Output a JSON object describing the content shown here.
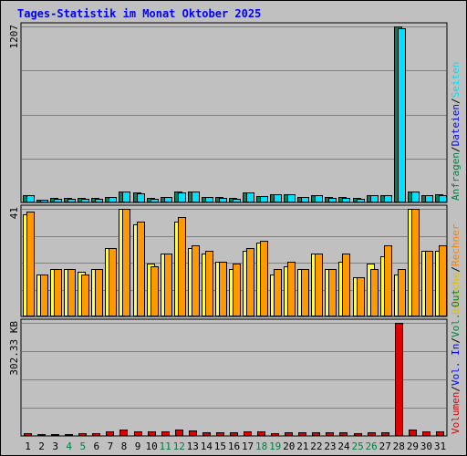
{
  "title": "Tages-Statistik im Monat Oktober 2025",
  "chart_data": [
    {
      "type": "bar",
      "panel": "top",
      "ymax_label": "1207",
      "ylim": [
        0,
        1207
      ],
      "categories": [
        "1",
        "2",
        "3",
        "4",
        "5",
        "6",
        "7",
        "8",
        "9",
        "10",
        "11",
        "12",
        "13",
        "14",
        "15",
        "16",
        "17",
        "18",
        "19",
        "20",
        "21",
        "22",
        "23",
        "24",
        "25",
        "26",
        "27",
        "28",
        "29",
        "30",
        "31"
      ],
      "weekend_days": [
        "4",
        "5",
        "11",
        "12",
        "18",
        "19",
        "25",
        "26"
      ],
      "right_labels": [
        {
          "text": "Anfragen",
          "color": "#008040"
        },
        {
          "text": "/",
          "color": "#000000"
        },
        {
          "text": "Dateien",
          "color": "#0000ff"
        },
        {
          "text": "/",
          "color": "#000000"
        },
        {
          "text": "Seiten",
          "color": "#00e0ff"
        }
      ],
      "series": [
        {
          "name": "Anfragen",
          "color": "#00805c",
          "values": [
            50,
            20,
            30,
            30,
            30,
            30,
            40,
            78,
            70,
            30,
            40,
            76,
            78,
            40,
            35,
            30,
            70,
            45,
            55,
            55,
            40,
            50,
            35,
            35,
            30,
            50,
            50,
            1207,
            75,
            50,
            55
          ]
        },
        {
          "name": "Dateien",
          "color": "#00e0ff",
          "values": [
            48,
            18,
            28,
            28,
            28,
            28,
            38,
            75,
            65,
            28,
            38,
            70,
            72,
            38,
            32,
            28,
            70,
            42,
            55,
            55,
            38,
            48,
            32,
            32,
            28,
            48,
            48,
            1193,
            72,
            48,
            50
          ]
        }
      ]
    },
    {
      "type": "bar",
      "panel": "middle",
      "ymax_label": "41",
      "ylim": [
        0,
        41
      ],
      "categories": [
        "1",
        "2",
        "3",
        "4",
        "5",
        "6",
        "7",
        "8",
        "9",
        "10",
        "11",
        "12",
        "13",
        "14",
        "15",
        "16",
        "17",
        "18",
        "19",
        "20",
        "21",
        "22",
        "23",
        "24",
        "25",
        "26",
        "27",
        "28",
        "29",
        "30",
        "31"
      ],
      "right_labels": [
        {
          "text": "Besuche",
          "color": "#e0c000"
        },
        {
          "text": "/",
          "color": "#000000"
        },
        {
          "text": "Rechner",
          "color": "#ff8000"
        }
      ],
      "series": [
        {
          "name": "Besuche",
          "color": "#ffff40",
          "values": [
            39,
            16,
            18,
            18,
            17,
            18,
            26,
            41,
            35,
            20,
            24,
            36,
            26,
            24,
            21,
            18,
            25,
            28,
            16,
            19,
            18,
            24,
            18,
            21,
            15,
            20,
            23,
            16,
            41,
            25,
            25
          ]
        },
        {
          "name": "Rechner",
          "color": "#ff9900",
          "values": [
            40,
            16,
            18,
            18,
            16,
            18,
            26,
            41,
            36,
            19,
            24,
            38,
            27,
            25,
            21,
            20,
            26,
            29,
            18,
            21,
            18,
            24,
            18,
            24,
            15,
            18,
            27,
            18,
            41,
            25,
            27
          ]
        }
      ]
    },
    {
      "type": "bar",
      "panel": "bottom",
      "ymax_label": "302.33 KB",
      "ylim": [
        0,
        302.33
      ],
      "categories": [
        "1",
        "2",
        "3",
        "4",
        "5",
        "6",
        "7",
        "8",
        "9",
        "10",
        "11",
        "12",
        "13",
        "14",
        "15",
        "16",
        "17",
        "18",
        "19",
        "20",
        "21",
        "22",
        "23",
        "24",
        "25",
        "26",
        "27",
        "28",
        "29",
        "30",
        "31"
      ],
      "right_labels": [
        {
          "text": "Volumen",
          "color": "#e00000"
        },
        {
          "text": "/",
          "color": "#000000"
        },
        {
          "text": "Vol. In",
          "color": "#0000ff"
        },
        {
          "text": "/",
          "color": "#000000"
        },
        {
          "text": "Vol. Out",
          "color": "#008040"
        }
      ],
      "series": [
        {
          "name": "Volumen",
          "color": "#e00000",
          "values": [
            8,
            6,
            6,
            6,
            7,
            8,
            11,
            16,
            13,
            11,
            11,
            16,
            14,
            9,
            9,
            9,
            12,
            11,
            7,
            9,
            9,
            9,
            9,
            9,
            7,
            9,
            9,
            302,
            18,
            11,
            13
          ]
        }
      ]
    }
  ]
}
